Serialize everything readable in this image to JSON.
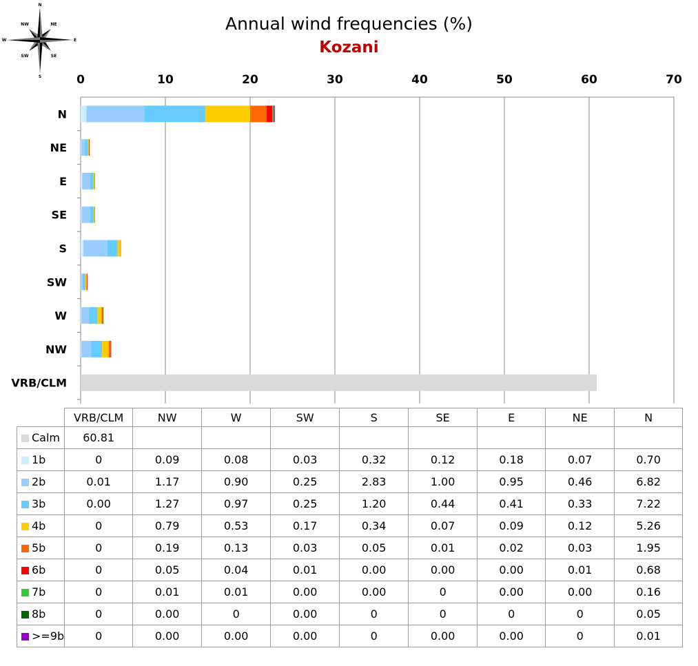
{
  "compass": {
    "labels": {
      "n": "N",
      "ne": "NE",
      "e": "E",
      "se": "SE",
      "s": "S",
      "sw": "SW",
      "w": "W",
      "nw": "NW"
    }
  },
  "chart_data": {
    "type": "bar",
    "orientation": "horizontal",
    "stacked": true,
    "title": "Annual wind frequencies (%)",
    "subtitle": "Kozani",
    "title_color": "#000000",
    "subtitle_color": "#c00000",
    "xlim": [
      0,
      70
    ],
    "xticks": [
      0,
      10,
      20,
      30,
      40,
      50,
      60,
      70
    ],
    "grid": "vertical",
    "categories": [
      "N",
      "NE",
      "E",
      "SE",
      "S",
      "SW",
      "W",
      "NW",
      "VRB/CLM"
    ],
    "series": [
      {
        "name": "Calm",
        "color": "#d9d9d9",
        "values": [
          0,
          0,
          0,
          0,
          0,
          0,
          0,
          0,
          60.81
        ]
      },
      {
        "name": "1b",
        "color": "#ccecff",
        "values": [
          0.7,
          0.07,
          0.18,
          0.12,
          0.32,
          0.03,
          0.08,
          0.09,
          0
        ]
      },
      {
        "name": "2b",
        "color": "#99ccff",
        "values": [
          6.82,
          0.46,
          0.95,
          1.0,
          2.83,
          0.25,
          0.9,
          1.17,
          0.01
        ]
      },
      {
        "name": "3b",
        "color": "#66ccff",
        "values": [
          7.22,
          0.33,
          0.41,
          0.44,
          1.2,
          0.25,
          0.97,
          1.27,
          0.0
        ]
      },
      {
        "name": "4b",
        "color": "#ffcc00",
        "values": [
          5.26,
          0.12,
          0.09,
          0.07,
          0.34,
          0.17,
          0.53,
          0.79,
          0
        ]
      },
      {
        "name": "5b",
        "color": "#ff6600",
        "values": [
          1.95,
          0.03,
          0.02,
          0.01,
          0.05,
          0.03,
          0.13,
          0.19,
          0
        ]
      },
      {
        "name": "6b",
        "color": "#ff0000",
        "values": [
          0.68,
          0.01,
          0.0,
          0.0,
          0.0,
          0.01,
          0.04,
          0.05,
          0
        ]
      },
      {
        "name": "7b",
        "color": "#33cc33",
        "values": [
          0.16,
          0.0,
          0.0,
          0,
          0.0,
          0.0,
          0.01,
          0.01,
          0
        ]
      },
      {
        "name": "8b",
        "color": "#006600",
        "values": [
          0.05,
          0,
          0,
          0,
          0,
          0.0,
          0,
          0.0,
          0
        ]
      },
      {
        "name": ">=9b",
        "color": "#9900cc",
        "values": [
          0.01,
          0,
          0.0,
          0.0,
          0,
          0.0,
          0.0,
          0.0,
          0
        ]
      }
    ]
  },
  "table": {
    "columns": [
      "VRB/CLM",
      "NW",
      "W",
      "SW",
      "S",
      "SE",
      "E",
      "NE",
      "N"
    ],
    "rows": [
      {
        "label": "Calm",
        "color": "#d9d9d9",
        "cells": [
          "60.81",
          "",
          "",
          "",
          "",
          "",
          "",
          "",
          ""
        ]
      },
      {
        "label": "1b",
        "color": "#ccecff",
        "cells": [
          "0",
          "0.09",
          "0.08",
          "0.03",
          "0.32",
          "0.12",
          "0.18",
          "0.07",
          "0.70"
        ]
      },
      {
        "label": "2b",
        "color": "#99ccff",
        "cells": [
          "0.01",
          "1.17",
          "0.90",
          "0.25",
          "2.83",
          "1.00",
          "0.95",
          "0.46",
          "6.82"
        ]
      },
      {
        "label": "3b",
        "color": "#66ccff",
        "cells": [
          "0.00",
          "1.27",
          "0.97",
          "0.25",
          "1.20",
          "0.44",
          "0.41",
          "0.33",
          "7.22"
        ]
      },
      {
        "label": "4b",
        "color": "#ffcc00",
        "cells": [
          "0",
          "0.79",
          "0.53",
          "0.17",
          "0.34",
          "0.07",
          "0.09",
          "0.12",
          "5.26"
        ]
      },
      {
        "label": "5b",
        "color": "#ff6600",
        "cells": [
          "0",
          "0.19",
          "0.13",
          "0.03",
          "0.05",
          "0.01",
          "0.02",
          "0.03",
          "1.95"
        ]
      },
      {
        "label": "6b",
        "color": "#ff0000",
        "cells": [
          "0",
          "0.05",
          "0.04",
          "0.01",
          "0.00",
          "0.00",
          "0.00",
          "0.01",
          "0.68"
        ]
      },
      {
        "label": "7b",
        "color": "#33cc33",
        "cells": [
          "0",
          "0.01",
          "0.01",
          "0.00",
          "0.00",
          "0",
          "0.00",
          "0.00",
          "0.16"
        ]
      },
      {
        "label": "8b",
        "color": "#006600",
        "cells": [
          "0",
          "0.00",
          "0",
          "0.00",
          "0",
          "0",
          "0",
          "0",
          "0.05"
        ]
      },
      {
        "label": ">=9b",
        "color": "#9900cc",
        "cells": [
          "0",
          "0.00",
          "0.00",
          "0.00",
          "0",
          "0.00",
          "0.00",
          "0",
          "0.01"
        ]
      }
    ]
  }
}
